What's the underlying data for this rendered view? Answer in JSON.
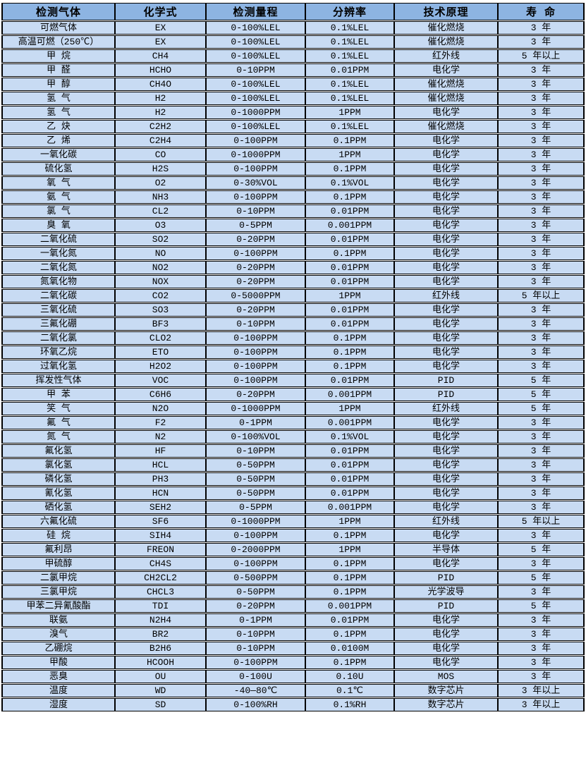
{
  "colors": {
    "header_bg": "#8db4e2",
    "cell_bg": "#c8dbf3",
    "border": "#000000",
    "row_gap": "#ffffff",
    "text": "#000000"
  },
  "table": {
    "headers": [
      "检测气体",
      "化学式",
      "检测量程",
      "分辨率",
      "技术原理",
      "寿 命"
    ],
    "column_keys": [
      "gas-name",
      "chemical-formula",
      "detection-range",
      "resolution",
      "technology",
      "lifespan"
    ],
    "rows": [
      [
        "可燃气体",
        "EX",
        "0-100%LEL",
        "0.1%LEL",
        "催化燃烧",
        "3 年"
      ],
      [
        "高温可燃（250℃）",
        "EX",
        "0-100%LEL",
        "0.1%LEL",
        "催化燃烧",
        "3 年"
      ],
      [
        "甲 烷",
        "CH4",
        "0-100%LEL",
        "0.1%LEL",
        "红外线",
        "5 年以上"
      ],
      [
        "甲 醛",
        "HCHO",
        "0-10PPM",
        "0.01PPM",
        "电化学",
        "3 年"
      ],
      [
        "甲 醇",
        "CH4O",
        "0-100%LEL",
        "0.1%LEL",
        "催化燃烧",
        "3 年"
      ],
      [
        "氢 气",
        "H2",
        "0-100%LEL",
        "0.1%LEL",
        "催化燃烧",
        "3 年"
      ],
      [
        "氢 气",
        "H2",
        "0-1000PPM",
        "1PPM",
        "电化学",
        "3 年"
      ],
      [
        "乙 炔",
        "C2H2",
        "0-100%LEL",
        "0.1%LEL",
        "催化燃烧",
        "3 年"
      ],
      [
        "乙 烯",
        "C2H4",
        "0-100PPM",
        "0.1PPM",
        "电化学",
        "3 年"
      ],
      [
        "一氧化碳",
        "CO",
        "0-1000PPM",
        "1PPM",
        "电化学",
        "3 年"
      ],
      [
        "硫化氢",
        "H2S",
        "0-100PPM",
        "0.1PPM",
        "电化学",
        "3 年"
      ],
      [
        "氧 气",
        "O2",
        "0-30%VOL",
        "0.1%VOL",
        "电化学",
        "3 年"
      ],
      [
        "氨 气",
        "NH3",
        "0-100PPM",
        "0.1PPM",
        "电化学",
        "3 年"
      ],
      [
        "氯 气",
        "CL2",
        "0-10PPM",
        "0.01PPM",
        "电化学",
        "3 年"
      ],
      [
        "臭 氧",
        "O3",
        "0-5PPM",
        "0.001PPM",
        "电化学",
        "3 年"
      ],
      [
        "二氧化硫",
        "SO2",
        "0-20PPM",
        "0.01PPM",
        "电化学",
        "3 年"
      ],
      [
        "一氧化氮",
        "NO",
        "0-100PPM",
        "0.1PPM",
        "电化学",
        "3 年"
      ],
      [
        "二氧化氮",
        "NO2",
        "0-20PPM",
        "0.01PPM",
        "电化学",
        "3 年"
      ],
      [
        "氮氧化物",
        "NOX",
        "0-20PPM",
        "0.01PPM",
        "电化学",
        "3 年"
      ],
      [
        "二氧化碳",
        "CO2",
        "0-5000PPM",
        "1PPM",
        "红外线",
        "5 年以上"
      ],
      [
        "三氧化硫",
        "SO3",
        "0-20PPM",
        "0.01PPM",
        "电化学",
        "3 年"
      ],
      [
        "三氟化硼",
        "BF3",
        "0-10PPM",
        "0.01PPM",
        "电化学",
        "3 年"
      ],
      [
        "二氧化氯",
        "CLO2",
        "0-100PPM",
        "0.1PPM",
        "电化学",
        "3 年"
      ],
      [
        "环氧乙烷",
        "ETO",
        "0-100PPM",
        "0.1PPM",
        "电化学",
        "3 年"
      ],
      [
        "过氧化氢",
        "H2O2",
        "0-100PPM",
        "0.1PPM",
        "电化学",
        "3 年"
      ],
      [
        "挥发性气体",
        "VOC",
        "0-100PPM",
        "0.01PPM",
        "PID",
        "5 年"
      ],
      [
        "甲 苯",
        "C6H6",
        "0-20PPM",
        "0.001PPM",
        "PID",
        "5 年"
      ],
      [
        "笑 气",
        "N2O",
        "0-1000PPM",
        "1PPM",
        "红外线",
        "5 年"
      ],
      [
        "氟 气",
        "F2",
        "0-1PPM",
        "0.001PPM",
        "电化学",
        "3 年"
      ],
      [
        "氮 气",
        "N2",
        "0-100%VOL",
        "0.1%VOL",
        "电化学",
        "3 年"
      ],
      [
        "氟化氢",
        "HF",
        "0-10PPM",
        "0.01PPM",
        "电化学",
        "3 年"
      ],
      [
        "氯化氢",
        "HCL",
        "0-50PPM",
        "0.01PPM",
        "电化学",
        "3 年"
      ],
      [
        "磷化氢",
        "PH3",
        "0-50PPM",
        "0.01PPM",
        "电化学",
        "3 年"
      ],
      [
        "氰化氢",
        "HCN",
        "0-50PPM",
        "0.01PPM",
        "电化学",
        "3 年"
      ],
      [
        "硒化氢",
        "SEH2",
        "0-5PPM",
        "0.001PPM",
        "电化学",
        "3 年"
      ],
      [
        "六氟化硫",
        "SF6",
        "0-1000PPM",
        "1PPM",
        "红外线",
        "5 年以上"
      ],
      [
        "硅 烷",
        "SIH4",
        "0-100PPM",
        "0.1PPM",
        "电化学",
        "3 年"
      ],
      [
        "氟利昂",
        "FREON",
        "0-2000PPM",
        "1PPM",
        "半导体",
        "5 年"
      ],
      [
        "甲硫醇",
        "CH4S",
        "0-100PPM",
        "0.1PPM",
        "电化学",
        "3 年"
      ],
      [
        "二氯甲烷",
        "CH2CL2",
        "0-500PPM",
        "0.1PPM",
        "PID",
        "5 年"
      ],
      [
        "三氯甲烷",
        "CHCL3",
        "0-50PPM",
        "0.1PPM",
        "光学波导",
        "3 年"
      ],
      [
        "甲苯二异氰酸酯",
        "TDI",
        "0-20PPM",
        "0.001PPM",
        "PID",
        "5 年"
      ],
      [
        "联氨",
        "N2H4",
        "0-1PPM",
        "0.01PPM",
        "电化学",
        "3 年"
      ],
      [
        "溴气",
        "BR2",
        "0-10PPM",
        "0.1PPM",
        "电化学",
        "3 年"
      ],
      [
        "乙硼烷",
        "B2H6",
        "0-10PPM",
        "0.0100M",
        "电化学",
        "3 年"
      ],
      [
        "甲酸",
        "HCOOH",
        "0-100PPM",
        "0.1PPM",
        "电化学",
        "3 年"
      ],
      [
        "恶臭",
        "OU",
        "0-100U",
        "0.10U",
        "MOS",
        "3 年"
      ],
      [
        "温度",
        "WD",
        "-40—80℃",
        "0.1℃",
        "数字芯片",
        "3 年以上"
      ],
      [
        "湿度",
        "SD",
        "0-100%RH",
        "0.1%RH",
        "数字芯片",
        "3 年以上"
      ]
    ]
  }
}
